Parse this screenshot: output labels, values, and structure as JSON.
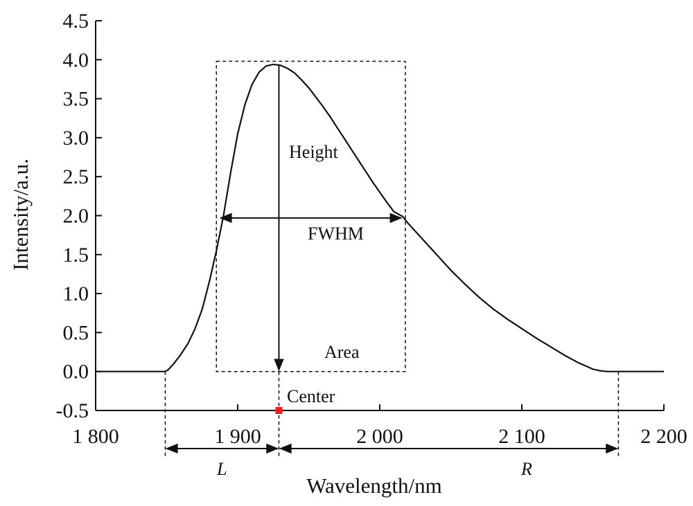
{
  "chart_data": {
    "type": "line",
    "title": "",
    "xlabel": "Wavelength/nm",
    "ylabel": "Intensity/a.u.",
    "xlim": [
      1800,
      2200
    ],
    "ylim": [
      -0.5,
      4.5
    ],
    "xticks": [
      1800,
      1900,
      2000,
      2100,
      2200
    ],
    "xtick_labels": [
      "1 800",
      "1 900",
      "2 000",
      "2 100",
      "2 200"
    ],
    "yticks": [
      -0.5,
      0.0,
      0.5,
      1.0,
      1.5,
      2.0,
      2.5,
      3.0,
      3.5,
      4.0,
      4.5
    ],
    "ytick_labels": [
      "-0.5",
      "0.0",
      "0.5",
      "1.0",
      "1.5",
      "2.0",
      "2.5",
      "3.0",
      "3.5",
      "4.0",
      "4.5"
    ],
    "grid": false,
    "legend": "none",
    "series": [
      {
        "x": [
          1800,
          1840,
          1849,
          1851,
          1855,
          1860,
          1865,
          1870,
          1875,
          1880,
          1885,
          1890,
          1895,
          1900,
          1905,
          1910,
          1915,
          1920,
          1925,
          1930,
          1935,
          1940,
          1945,
          1950,
          1955,
          1960,
          1965,
          1970,
          1975,
          1980,
          1985,
          1990,
          1995,
          2000,
          2005,
          2010,
          2016,
          2020,
          2030,
          2040,
          2050,
          2060,
          2070,
          2080,
          2090,
          2100,
          2110,
          2120,
          2130,
          2140,
          2145,
          2150,
          2155,
          2160,
          2165,
          2170,
          2200
        ],
        "y": [
          0.0,
          0.0,
          0.0,
          0.02,
          0.1,
          0.22,
          0.36,
          0.55,
          0.8,
          1.15,
          1.55,
          2.0,
          2.55,
          3.05,
          3.42,
          3.68,
          3.84,
          3.92,
          3.94,
          3.93,
          3.89,
          3.83,
          3.74,
          3.64,
          3.52,
          3.4,
          3.27,
          3.13,
          2.99,
          2.85,
          2.71,
          2.57,
          2.43,
          2.3,
          2.17,
          2.05,
          1.99,
          1.9,
          1.7,
          1.5,
          1.3,
          1.12,
          0.95,
          0.8,
          0.67,
          0.55,
          0.43,
          0.32,
          0.21,
          0.11,
          0.07,
          0.03,
          0.01,
          0.0,
          0.0,
          0.0,
          0.0
        ],
        "color": "#111111"
      }
    ],
    "annotations": {
      "height_label": "Height",
      "fwhm_label": "FWHM",
      "area_label": "Area",
      "center_label": "Center",
      "left_label": "L",
      "right_label": "R",
      "left_bound": 1849,
      "right_bound": 2168,
      "center": 1929,
      "peak": 3.94,
      "fwhm_left": 1887,
      "fwhm_right": 2016,
      "half_max": 1.97,
      "center_marker_color": "#ee1c25"
    }
  }
}
